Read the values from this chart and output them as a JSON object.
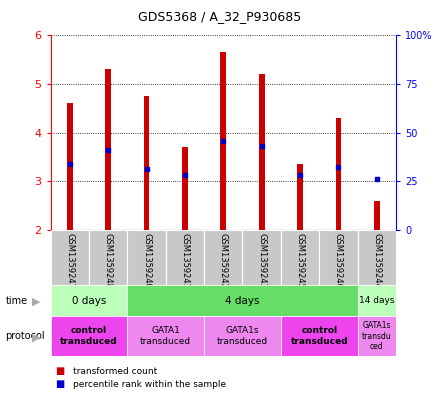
{
  "title": "GDS5368 / A_32_P930685",
  "samples": [
    "GSM1359247",
    "GSM1359248",
    "GSM1359240",
    "GSM1359241",
    "GSM1359242",
    "GSM1359243",
    "GSM1359245",
    "GSM1359246",
    "GSM1359244"
  ],
  "bar_bottom": 2.0,
  "red_tops": [
    4.6,
    5.3,
    4.75,
    3.7,
    5.65,
    5.2,
    3.35,
    4.3,
    2.6
  ],
  "blue_vals": [
    3.35,
    3.65,
    3.25,
    3.12,
    3.82,
    3.72,
    3.12,
    3.3,
    3.05
  ],
  "ylim_left": [
    2,
    6
  ],
  "ylim_right": [
    0,
    100
  ],
  "yticks_left": [
    2,
    3,
    4,
    5,
    6
  ],
  "yticks_right": [
    0,
    25,
    50,
    75,
    100
  ],
  "ytick_labels_right": [
    "0",
    "25",
    "50",
    "75",
    "100%"
  ],
  "bar_color": "#cc0000",
  "blue_color": "#0000cc",
  "sample_bg": "#c8c8c8",
  "bar_width": 0.15,
  "time_row": [
    {
      "label": "0 days",
      "start": 0,
      "end": 2,
      "color": "#bbffbb"
    },
    {
      "label": "4 days",
      "start": 2,
      "end": 8,
      "color": "#66dd66"
    },
    {
      "label": "14 days",
      "start": 8,
      "end": 9,
      "color": "#bbffbb"
    }
  ],
  "protocol_row": [
    {
      "label": "control\ntransduced",
      "start": 0,
      "end": 2,
      "color": "#ee44ee",
      "bold": true
    },
    {
      "label": "GATA1\ntransduced",
      "start": 2,
      "end": 4,
      "color": "#ee88ee",
      "bold": false
    },
    {
      "label": "GATA1s\ntransduced",
      "start": 4,
      "end": 6,
      "color": "#ee88ee",
      "bold": false
    },
    {
      "label": "control\ntransduced",
      "start": 6,
      "end": 8,
      "color": "#ee44ee",
      "bold": true
    },
    {
      "label": "GATA1s\ntransdu\nced",
      "start": 8,
      "end": 9,
      "color": "#ee88ee",
      "bold": false
    }
  ],
  "legend_red": "transformed count",
  "legend_blue": "percentile rank within the sample"
}
